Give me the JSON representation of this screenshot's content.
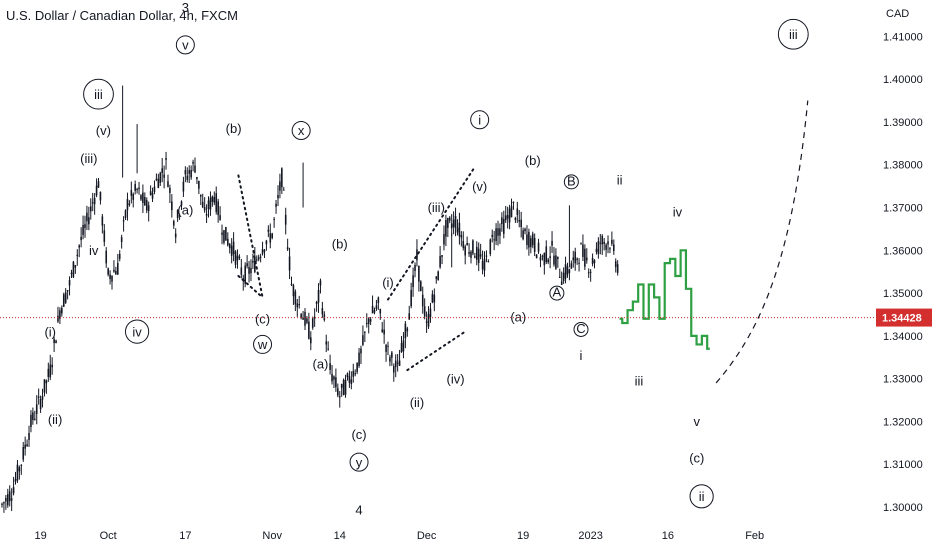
{
  "chart_title": "U.S. Dollar / Canadian Dollar, 4h, FXCM",
  "currency": "CAD",
  "colors": {
    "candles": "#131722",
    "forecast": "#2ea043",
    "price_line": "#d32f2f",
    "price_tag_bg": "#d32f2f",
    "annotation": "#131722"
  },
  "chart_data": {
    "type": "line",
    "y_ticks": [
      "1.41000",
      "1.40000",
      "1.39000",
      "1.38000",
      "1.37000",
      "1.36000",
      "1.35000",
      "1.34000",
      "1.33000",
      "1.32000",
      "1.31000",
      "1.30000"
    ],
    "x_ticks": [
      {
        "label": "19",
        "bar": 4
      },
      {
        "label": "Oct",
        "bar": 11
      },
      {
        "label": "17",
        "bar": 19
      },
      {
        "label": "Nov",
        "bar": 28
      },
      {
        "label": "14",
        "bar": 35
      },
      {
        "label": "Dec",
        "bar": 44
      },
      {
        "label": "19",
        "bar": 54
      },
      {
        "label": "2023",
        "bar": 61
      },
      {
        "label": "16",
        "bar": 69
      },
      {
        "label": "Feb",
        "bar": 78
      }
    ],
    "ylim": [
      1.2965,
      1.4185
    ],
    "last_price": "1.34428",
    "price_series": [
      1.3005,
      1.3035,
      1.3105,
      1.3195,
      1.325,
      1.332,
      1.346,
      1.352,
      1.361,
      1.368,
      1.376,
      1.354,
      1.356,
      1.371,
      1.374,
      1.37,
      1.376,
      1.38,
      1.365,
      1.377,
      1.38,
      1.368,
      1.373,
      1.364,
      1.36,
      1.354,
      1.356,
      1.361,
      1.364,
      1.377,
      1.352,
      1.346,
      1.34,
      1.351,
      1.332,
      1.326,
      1.33,
      1.334,
      1.344,
      1.347,
      1.336,
      1.332,
      1.343,
      1.358,
      1.342,
      1.352,
      1.365,
      1.367,
      1.361,
      1.36,
      1.356,
      1.364,
      1.366,
      1.37,
      1.364,
      1.362,
      1.358,
      1.36,
      1.354,
      1.356,
      1.36,
      1.356,
      1.362,
      1.362,
      1.355
    ],
    "forecast_series": [
      1.344,
      1.343,
      1.346,
      1.348,
      1.352,
      1.344,
      1.352,
      1.349,
      1.344,
      1.357,
      1.358,
      1.354,
      1.36,
      1.351,
      1.34,
      1.338,
      1.34,
      1.337
    ],
    "wave_labels": [
      {
        "text": "3",
        "bar": 19,
        "price": 1.417,
        "size": 15
      },
      {
        "text": "v",
        "bar": 19,
        "price": 1.408,
        "circled": true
      },
      {
        "text": "iii",
        "bar": 10,
        "price": 1.3965,
        "circled": true
      },
      {
        "text": "(v)",
        "bar": 10.5,
        "price": 1.388
      },
      {
        "text": "(iii)",
        "bar": 9,
        "price": 1.3815
      },
      {
        "text": "iv",
        "bar": 9.5,
        "price": 1.36
      },
      {
        "text": "(i)",
        "bar": 5,
        "price": 1.341
      },
      {
        "text": "(ii)",
        "bar": 5.5,
        "price": 1.3205
      },
      {
        "text": "iv",
        "bar": 14,
        "price": 1.341,
        "circled": true
      },
      {
        "text": "(a)",
        "bar": 19,
        "price": 1.3695
      },
      {
        "text": "(b)",
        "bar": 24,
        "price": 1.3885
      },
      {
        "text": "x",
        "bar": 31,
        "price": 1.388,
        "circled": true
      },
      {
        "text": "(c)",
        "bar": 27,
        "price": 1.344
      },
      {
        "text": "w",
        "bar": 27,
        "price": 1.338,
        "circled": true
      },
      {
        "text": "(b)",
        "bar": 35,
        "price": 1.3615
      },
      {
        "text": "(a)",
        "bar": 33,
        "price": 1.3335
      },
      {
        "text": "(c)",
        "bar": 37,
        "price": 1.317
      },
      {
        "text": "y",
        "bar": 37,
        "price": 1.3105,
        "circled": true
      },
      {
        "text": "4",
        "bar": 37,
        "price": 1.2995,
        "size": 15
      },
      {
        "text": "(i)",
        "bar": 40,
        "price": 1.3525
      },
      {
        "text": "(ii)",
        "bar": 43,
        "price": 1.3245
      },
      {
        "text": "(iii)",
        "bar": 45,
        "price": 1.37
      },
      {
        "text": "(iv)",
        "bar": 47,
        "price": 1.33
      },
      {
        "text": "(v)",
        "bar": 49.5,
        "price": 1.375
      },
      {
        "text": "i",
        "bar": 49.5,
        "price": 1.3905,
        "circled": true
      },
      {
        "text": "(b)",
        "bar": 55,
        "price": 1.381
      },
      {
        "text": "B",
        "bar": 59,
        "price": 1.376,
        "circled": true,
        "small": true
      },
      {
        "text": "A",
        "bar": 57.5,
        "price": 1.35,
        "circled": true,
        "small": true
      },
      {
        "text": "(a)",
        "bar": 53.5,
        "price": 1.3445
      },
      {
        "text": "C",
        "bar": 60,
        "price": 1.3415,
        "circled": true,
        "small": true
      },
      {
        "text": "i",
        "bar": 60,
        "price": 1.3355
      },
      {
        "text": "ii",
        "bar": 64,
        "price": 1.3765
      },
      {
        "text": "iii",
        "bar": 66,
        "price": 1.3295
      },
      {
        "text": "iv",
        "bar": 70,
        "price": 1.369
      },
      {
        "text": "v",
        "bar": 72,
        "price": 1.32
      },
      {
        "text": "(c)",
        "bar": 72,
        "price": 1.3115
      },
      {
        "text": "ii",
        "bar": 72.5,
        "price": 1.3025,
        "circled": true
      },
      {
        "text": "iii",
        "bar": 82,
        "price": 1.4105,
        "circled": true
      }
    ],
    "trend_lines": [
      {
        "from": {
          "bar": 40,
          "price": 1.3485
        },
        "to": {
          "bar": 49,
          "price": 1.3795
        }
      },
      {
        "from": {
          "bar": 42,
          "price": 1.332
        },
        "to": {
          "bar": 48,
          "price": 1.341
        }
      },
      {
        "from": {
          "bar": 24.5,
          "price": 1.3775
        },
        "to": {
          "bar": 27,
          "price": 1.349
        }
      },
      {
        "from": {
          "bar": 24.5,
          "price": 1.354
        },
        "to": {
          "bar": 27,
          "price": 1.349
        }
      }
    ],
    "projection_arc": [
      {
        "bar": 74,
        "price": 1.329
      },
      {
        "bar": 79,
        "price": 1.342
      },
      {
        "bar": 82,
        "price": 1.36
      },
      {
        "bar": 83.5,
        "price": 1.395
      }
    ]
  }
}
